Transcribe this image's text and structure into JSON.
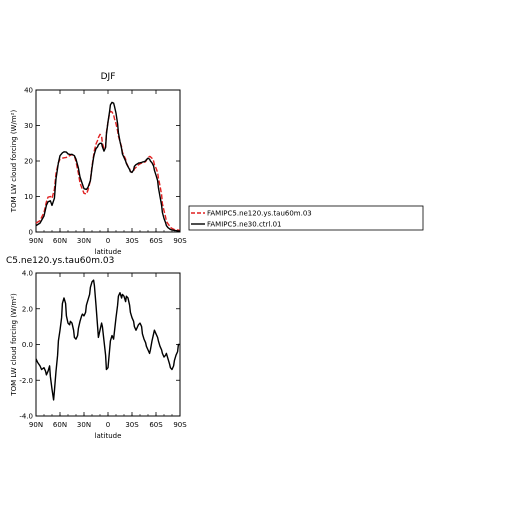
{
  "chart_data": [
    {
      "type": "line",
      "title": "DJF",
      "xlabel": "latitude",
      "ylabel": "TOM LW cloud forcing (W/m²)",
      "xlim": [
        90,
        -90
      ],
      "ylim": [
        0,
        40
      ],
      "x_ticks": [
        "90N",
        "60N",
        "30N",
        "0",
        "30S",
        "60S",
        "90S"
      ],
      "x_tick_values": [
        90,
        60,
        30,
        0,
        -30,
        -60,
        -90
      ],
      "y_ticks": [
        "0",
        "10",
        "20",
        "30",
        "40"
      ],
      "y_tick_values": [
        0,
        10,
        20,
        30,
        40
      ],
      "legend_position": "right",
      "series": [
        {
          "name": "FAMIPC5.ne120.ys.tau60m.03",
          "color": "#e02020",
          "style": "dashed",
          "x": [
            90,
            85,
            80,
            77,
            75,
            72,
            70,
            67,
            65,
            62,
            60,
            57,
            55,
            52,
            50,
            47,
            45,
            42,
            40,
            37,
            35,
            32,
            30,
            27,
            25,
            22,
            20,
            18,
            17,
            15,
            13,
            12,
            10,
            8,
            7,
            5,
            3,
            2,
            0,
            -2,
            -3,
            -5,
            -7,
            -8,
            -10,
            -12,
            -13,
            -15,
            -17,
            -18,
            -20,
            -22,
            -23,
            -25,
            -27,
            -28,
            -30,
            -32,
            -33,
            -35,
            -37,
            -38,
            -40,
            -42,
            -43,
            -45,
            -47,
            -48,
            -50,
            -52,
            -53,
            -55,
            -57,
            -58,
            -60,
            -62,
            -63,
            -65,
            -67,
            -68,
            -70,
            -72,
            -73,
            -75,
            -77,
            -78,
            -80,
            -82,
            -83,
            -85,
            -87,
            -88,
            -90
          ],
          "values": [
            2.5,
            3.2,
            5.5,
            8.5,
            9.8,
            10.0,
            9.5,
            12.0,
            16.5,
            19.5,
            20.5,
            20.8,
            20.9,
            21.0,
            21.3,
            21.6,
            21.8,
            21.4,
            19.8,
            16.5,
            13.8,
            12.0,
            10.9,
            10.7,
            11.8,
            14.5,
            18.5,
            21.5,
            23.0,
            24.8,
            25.8,
            26.6,
            27.5,
            27.0,
            25.0,
            23.5,
            24.0,
            28.0,
            31.0,
            33.5,
            34.0,
            33.8,
            33.0,
            32.0,
            30.5,
            28.5,
            27.0,
            25.5,
            24.0,
            22.5,
            21.5,
            20.5,
            19.5,
            18.5,
            17.8,
            17.1,
            16.8,
            17.2,
            17.8,
            18.2,
            18.6,
            18.9,
            19.2,
            19.4,
            19.5,
            19.6,
            19.8,
            20.2,
            20.9,
            21.3,
            21.2,
            20.8,
            20.0,
            19.0,
            18.0,
            16.8,
            15.2,
            13.0,
            10.5,
            8.0,
            6.0,
            4.2,
            3.0,
            2.3,
            1.7,
            1.3,
            1.0,
            0.8,
            0.7,
            0.6,
            0.6,
            0.5,
            0.5
          ]
        },
        {
          "name": "FAMIPC5.ne30.ctrl.01",
          "color": "#000000",
          "style": "solid",
          "x": [
            90,
            85,
            80,
            77,
            75,
            72,
            70,
            67,
            65,
            62,
            60,
            57,
            55,
            52,
            50,
            47,
            45,
            42,
            40,
            37,
            35,
            32,
            30,
            27,
            25,
            22,
            20,
            18,
            17,
            15,
            13,
            12,
            10,
            8,
            7,
            5,
            3,
            2,
            0,
            -2,
            -3,
            -5,
            -7,
            -8,
            -10,
            -12,
            -13,
            -15,
            -17,
            -18,
            -20,
            -22,
            -23,
            -25,
            -27,
            -28,
            -30,
            -32,
            -33,
            -35,
            -37,
            -38,
            -40,
            -42,
            -43,
            -45,
            -47,
            -48,
            -50,
            -52,
            -53,
            -55,
            -57,
            -58,
            -60,
            -62,
            -63,
            -65,
            -67,
            -68,
            -70,
            -72,
            -73,
            -75,
            -77,
            -78,
            -80,
            -82,
            -83,
            -85,
            -87,
            -88,
            -90
          ],
          "values": [
            1.8,
            2.5,
            4.5,
            7.5,
            8.5,
            8.8,
            7.5,
            9.5,
            15.0,
            19.5,
            21.5,
            22.3,
            22.6,
            22.5,
            22.0,
            21.8,
            21.9,
            21.5,
            20.5,
            18.0,
            15.5,
            13.5,
            12.2,
            12.0,
            12.6,
            14.5,
            18.0,
            21.0,
            22.0,
            23.5,
            24.0,
            24.6,
            25.0,
            25.0,
            24.0,
            22.8,
            23.8,
            27.5,
            31.0,
            34.0,
            35.8,
            36.5,
            36.3,
            35.5,
            33.5,
            30.5,
            28.0,
            25.5,
            23.5,
            22.0,
            21.0,
            20.0,
            19.3,
            18.4,
            17.6,
            17.0,
            16.8,
            17.5,
            18.5,
            19.0,
            19.2,
            19.4,
            19.5,
            19.6,
            19.7,
            19.8,
            20.0,
            20.4,
            20.8,
            20.5,
            20.0,
            19.5,
            18.6,
            17.4,
            16.0,
            14.5,
            12.5,
            10.0,
            7.5,
            5.5,
            3.8,
            2.6,
            1.8,
            1.2,
            0.9,
            0.7,
            0.6,
            0.5,
            0.4,
            0.4,
            0.3,
            0.3,
            0.3
          ]
        }
      ]
    },
    {
      "type": "line",
      "title": "C5.ne120.ys.tau60m.03",
      "xlabel": "latitude",
      "ylabel": "TOM LW cloud forcing (W/m²)",
      "xlim": [
        90,
        -90
      ],
      "ylim": [
        -4.0,
        4.0
      ],
      "x_ticks": [
        "90N",
        "60N",
        "30N",
        "0",
        "30S",
        "60S",
        "90S"
      ],
      "x_tick_values": [
        90,
        60,
        30,
        0,
        -30,
        -60,
        -90
      ],
      "y_ticks": [
        "-4.0",
        "-2.0",
        "0.0",
        "2.0",
        "4.0"
      ],
      "y_tick_values": [
        -4,
        -2,
        0,
        2,
        4
      ],
      "series": [
        {
          "color": "#000000",
          "style": "solid",
          "x": [
            90,
            88,
            85,
            83,
            80,
            78,
            77,
            75,
            73,
            72,
            70,
            68,
            67,
            65,
            63,
            62,
            60,
            58,
            57,
            55,
            53,
            52,
            50,
            48,
            47,
            45,
            43,
            42,
            40,
            38,
            37,
            35,
            33,
            32,
            30,
            28,
            27,
            25,
            23,
            22,
            20,
            18,
            17,
            15,
            13,
            12,
            10,
            8,
            7,
            5,
            3,
            2,
            0,
            -2,
            -3,
            -5,
            -7,
            -8,
            -10,
            -12,
            -13,
            -15,
            -17,
            -18,
            -20,
            -22,
            -23,
            -25,
            -27,
            -28,
            -30,
            -32,
            -33,
            -35,
            -37,
            -38,
            -40,
            -42,
            -43,
            -45,
            -47,
            -48,
            -50,
            -52,
            -53,
            -55,
            -57,
            -58,
            -60,
            -62,
            -63,
            -65,
            -67,
            -68,
            -70,
            -72,
            -73,
            -75,
            -77,
            -78,
            -80,
            -82,
            -83,
            -85,
            -87,
            -88,
            -90
          ],
          "values": [
            -0.8,
            -1.0,
            -1.2,
            -1.4,
            -1.3,
            -1.5,
            -1.7,
            -1.5,
            -1.2,
            -1.8,
            -2.5,
            -3.1,
            -2.6,
            -1.5,
            -0.6,
            0.2,
            0.8,
            1.5,
            2.3,
            2.6,
            2.3,
            1.6,
            1.2,
            1.1,
            1.3,
            1.2,
            0.8,
            0.4,
            0.3,
            0.5,
            0.9,
            1.3,
            1.6,
            1.7,
            1.6,
            1.8,
            2.2,
            2.5,
            2.8,
            3.2,
            3.5,
            3.6,
            3.3,
            2.2,
            1.0,
            0.4,
            0.8,
            1.2,
            1.0,
            0.2,
            -0.6,
            -1.4,
            -1.3,
            -0.3,
            0.2,
            0.5,
            0.3,
            0.7,
            1.5,
            2.2,
            2.7,
            2.9,
            2.6,
            2.8,
            2.7,
            2.4,
            2.7,
            2.6,
            2.2,
            1.8,
            1.5,
            1.3,
            1.0,
            0.8,
            1.0,
            1.1,
            1.2,
            1.0,
            0.6,
            0.3,
            0.1,
            -0.1,
            -0.3,
            -0.5,
            -0.3,
            0.2,
            0.6,
            0.8,
            0.6,
            0.4,
            0.2,
            -0.1,
            -0.3,
            -0.5,
            -0.7,
            -0.6,
            -0.5,
            -0.8,
            -1.1,
            -1.3,
            -1.4,
            -1.2,
            -0.9,
            -0.6,
            -0.4,
            0.0,
            0.0
          ]
        }
      ]
    }
  ]
}
